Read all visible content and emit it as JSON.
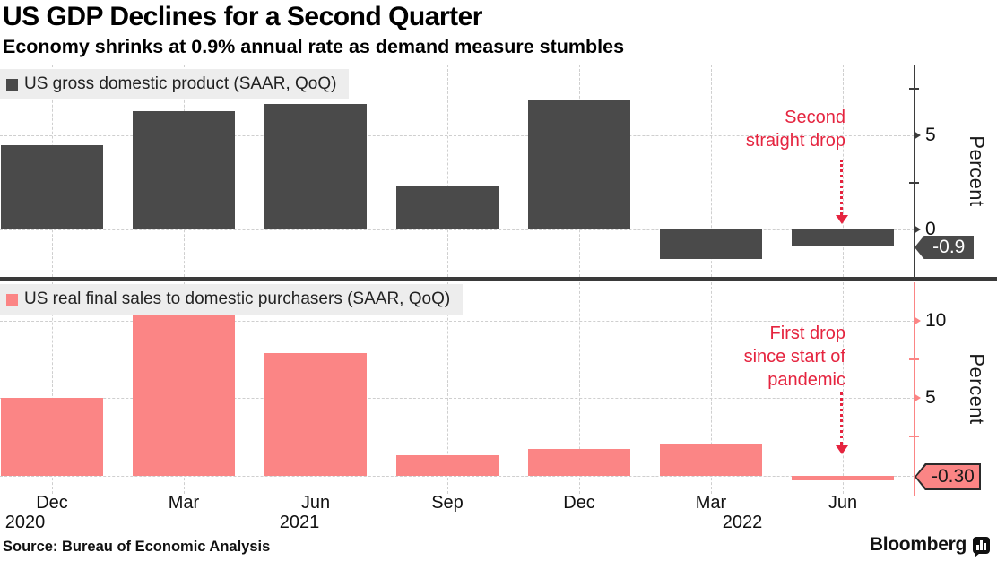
{
  "header": {
    "title": "US GDP Declines for a Second Quarter",
    "subtitle": "Economy shrinks at 0.9% annual rate as demand measure stumbles"
  },
  "chart_data": [
    {
      "type": "bar",
      "legend": "US gross domestic product (SAAR, QoQ)",
      "categories": [
        "Dec 2020",
        "Mar 2021",
        "Jun 2021",
        "Sep 2021",
        "Dec 2021",
        "Mar 2022",
        "Jun 2022"
      ],
      "values": [
        4.5,
        6.3,
        6.7,
        2.3,
        6.9,
        -1.6,
        -0.9
      ],
      "ylabel": "Percent",
      "ylim": [
        -2.6,
        8.8
      ],
      "yticks_labeled": [
        0,
        5
      ],
      "yticks_minor": [
        2.5,
        7.5
      ],
      "gridlines": [
        0,
        5
      ],
      "grid": true,
      "legend_position": "top-left",
      "axis_side": "right",
      "bar_color": "#4a4a4a",
      "axis_color": "#3d3d3d",
      "annotation": {
        "lines": [
          "Second",
          "straight drop"
        ],
        "color": "#e5243f"
      },
      "end_label": {
        "text": "-0.9",
        "bg": "#4a4a4a",
        "text_color": "#ffffff",
        "border": "#4a4a4a"
      }
    },
    {
      "type": "bar",
      "legend": "US real final sales to domestic purchasers (SAAR, QoQ)",
      "categories": [
        "Dec 2020",
        "Mar 2021",
        "Jun 2021",
        "Sep 2021",
        "Dec 2021",
        "Mar 2022",
        "Jun 2022"
      ],
      "values": [
        5.0,
        10.4,
        7.9,
        1.3,
        1.7,
        2.0,
        -0.3
      ],
      "ylabel": "Percent",
      "ylim": [
        -1.3,
        12.5
      ],
      "yticks_labeled": [
        5,
        10
      ],
      "yticks_minor": [
        2.5,
        7.5
      ],
      "gridlines": [
        0,
        5,
        10
      ],
      "grid": true,
      "legend_position": "top-left",
      "axis_side": "right",
      "bar_color": "#fb8585",
      "axis_color": "#fb8585",
      "annotation": {
        "lines": [
          "First drop",
          "since start of",
          "pandemic"
        ],
        "color": "#e5243f"
      },
      "end_label": {
        "text": "-0.30",
        "bg": "#fb8585",
        "text_color": "#1a1a1a",
        "border": "#2a2a2a"
      }
    }
  ],
  "x_axis": {
    "months": [
      "Dec",
      "Mar",
      "Jun",
      "Sep",
      "Dec",
      "Mar",
      "Jun"
    ],
    "years": [
      "2020",
      "2021",
      "2022"
    ]
  },
  "footer": {
    "source": "Source: Bureau of Economic Analysis",
    "brand": "Bloomberg"
  },
  "colors": {
    "annotation_red": "#e5243f",
    "gridline": "#cfcfcf",
    "separator": "#3a3a3a",
    "legend_bg": "#ededed",
    "gdp_bar": "#4a4a4a",
    "final_sales_bar": "#fb8585"
  }
}
